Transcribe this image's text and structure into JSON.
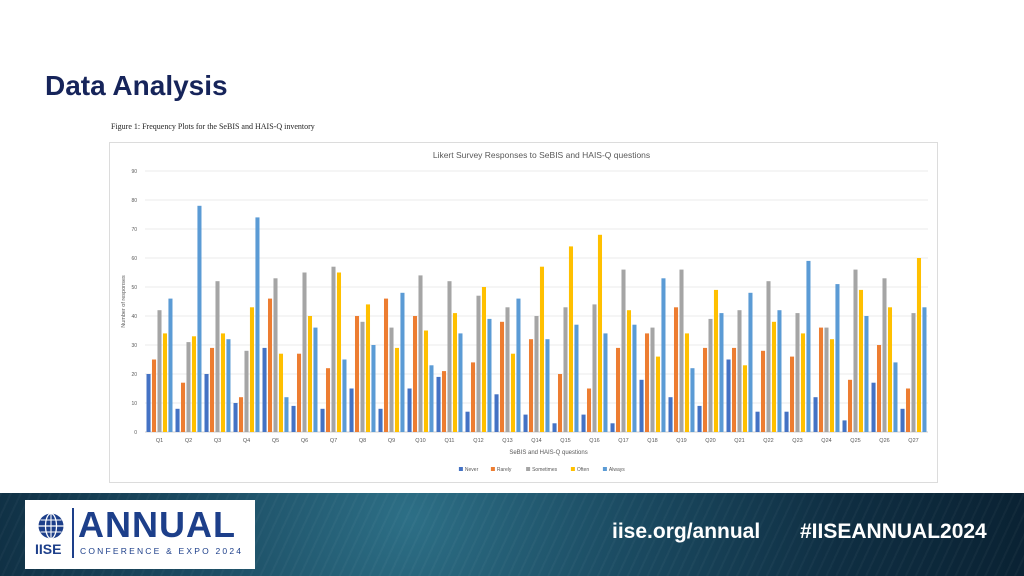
{
  "slide": {
    "title": "Data Analysis"
  },
  "figure": {
    "caption": "Figure 1: Frequency Plots for the SeBIS and HAIS-Q inventory"
  },
  "colors": {
    "Never": "#4472c4",
    "Rarely": "#ed7d31",
    "Sometimes": "#a5a5a5",
    "Often": "#ffc000",
    "Always": "#5b9bd5"
  },
  "chart_data": {
    "type": "bar",
    "title": "Likert Survey  Responses to SeBIS and HAIS-Q questions",
    "xlabel": "SeBIS and HAIS-Q questions",
    "ylabel": "Number of responses",
    "ylim": [
      0,
      90
    ],
    "yticks": [
      0,
      10,
      20,
      30,
      40,
      50,
      60,
      70,
      80,
      90
    ],
    "grid": true,
    "legend_position": "bottom",
    "categories": [
      "Q1",
      "Q2",
      "Q3",
      "Q4",
      "Q5",
      "Q6",
      "Q7",
      "Q8",
      "Q9",
      "Q10",
      "Q11",
      "Q12",
      "Q13",
      "Q14",
      "Q15",
      "Q16",
      "Q17",
      "Q18",
      "Q19",
      "Q20",
      "Q21",
      "Q22",
      "Q23",
      "Q24",
      "Q25",
      "Q26",
      "Q27"
    ],
    "series": [
      {
        "name": "Never",
        "values": [
          20,
          8,
          20,
          10,
          29,
          9,
          8,
          15,
          8,
          15,
          19,
          7,
          13,
          6,
          3,
          6,
          3,
          18,
          12,
          9,
          25,
          7,
          7,
          12,
          4,
          17,
          8
        ]
      },
      {
        "name": "Rarely",
        "values": [
          25,
          17,
          29,
          12,
          46,
          27,
          22,
          40,
          46,
          40,
          21,
          24,
          38,
          32,
          20,
          15,
          29,
          34,
          43,
          29,
          29,
          28,
          26,
          36,
          18,
          30,
          15
        ]
      },
      {
        "name": "Sometimes",
        "values": [
          42,
          31,
          52,
          28,
          53,
          55,
          57,
          38,
          36,
          54,
          52,
          47,
          43,
          40,
          43,
          44,
          56,
          36,
          56,
          39,
          42,
          52,
          41,
          36,
          56,
          53,
          41
        ]
      },
      {
        "name": "Often",
        "values": [
          34,
          33,
          34,
          43,
          27,
          40,
          55,
          44,
          29,
          35,
          41,
          50,
          27,
          57,
          64,
          68,
          42,
          26,
          34,
          49,
          23,
          38,
          34,
          32,
          49,
          43,
          60
        ]
      },
      {
        "name": "Always",
        "values": [
          46,
          78,
          32,
          74,
          12,
          36,
          25,
          30,
          48,
          23,
          34,
          39,
          46,
          32,
          37,
          34,
          37,
          53,
          22,
          41,
          48,
          42,
          59,
          51,
          40,
          24,
          43
        ]
      }
    ]
  },
  "logo": {
    "org": "IISE",
    "word": "ANNUAL",
    "subtitle": "CONFERENCE & EXPO 2024"
  },
  "footer": {
    "url": "iise.org/annual",
    "hashtag": "#IISEANNUAL2024"
  }
}
